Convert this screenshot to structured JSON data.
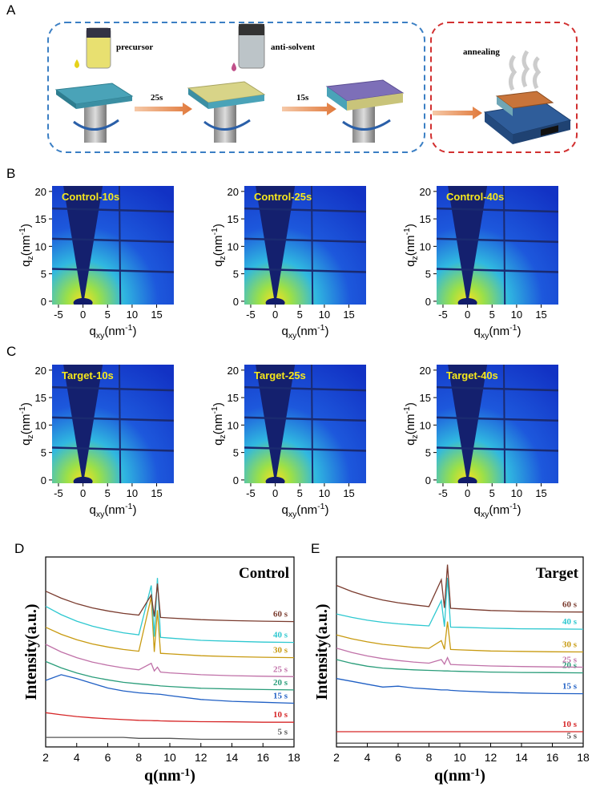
{
  "figure": {
    "panel_labels": [
      "A",
      "B",
      "C",
      "D",
      "E"
    ]
  },
  "schematic": {
    "steps": [
      "precursor",
      "anti-solvent",
      "annealing"
    ],
    "times": [
      "25s",
      "15s"
    ]
  },
  "chart_data": [
    {
      "type": "giwaxs",
      "title": "Control-10s",
      "xlim": [
        -6.3,
        18.5
      ],
      "ylim": [
        -0.6,
        21
      ],
      "xticks": [
        -5,
        0,
        5,
        10,
        15
      ],
      "yticks": [
        0,
        5,
        10,
        15,
        20
      ],
      "xlabel": [
        "q",
        "xy",
        "(nm",
        "-1",
        ")"
      ],
      "ylabel": [
        "q",
        "z",
        "(nm",
        "-1",
        ")"
      ]
    },
    {
      "type": "giwaxs",
      "title": "Control-25s",
      "xlim": [
        -6.3,
        18.5
      ],
      "ylim": [
        -0.6,
        21
      ],
      "xticks": [
        -5,
        0,
        5,
        10,
        15
      ],
      "yticks": [
        0,
        5,
        10,
        15,
        20
      ],
      "xlabel": [
        "q",
        "xy",
        "(nm",
        "-1",
        ")"
      ],
      "ylabel": [
        "q",
        "z",
        "(nm",
        "-1",
        ")"
      ]
    },
    {
      "type": "giwaxs",
      "title": "Control-40s",
      "xlim": [
        -6.3,
        18.5
      ],
      "ylim": [
        -0.6,
        21
      ],
      "xticks": [
        -5,
        0,
        5,
        10,
        15
      ],
      "yticks": [
        0,
        5,
        10,
        15,
        20
      ],
      "xlabel": [
        "q",
        "xy",
        "(nm",
        "-1",
        ")"
      ],
      "ylabel": [
        "q",
        "z",
        "(nm",
        "-1",
        ")"
      ]
    },
    {
      "type": "giwaxs",
      "title": "Target-10s",
      "xlim": [
        -6.3,
        18.5
      ],
      "ylim": [
        -0.6,
        21
      ],
      "xticks": [
        -5,
        0,
        5,
        10,
        15
      ],
      "yticks": [
        0,
        5,
        10,
        15,
        20
      ],
      "xlabel": [
        "q",
        "xy",
        "(nm",
        "-1",
        ")"
      ],
      "ylabel": [
        "q",
        "z",
        "(nm",
        "-1",
        ")"
      ]
    },
    {
      "type": "giwaxs",
      "title": "Target-25s",
      "xlim": [
        -6.3,
        18.5
      ],
      "ylim": [
        -0.6,
        21
      ],
      "xticks": [
        -5,
        0,
        5,
        10,
        15
      ],
      "yticks": [
        0,
        5,
        10,
        15,
        20
      ],
      "xlabel": [
        "q",
        "xy",
        "(nm",
        "-1",
        ")"
      ],
      "ylabel": [
        "q",
        "z",
        "(nm",
        "-1",
        ")"
      ]
    },
    {
      "type": "giwaxs",
      "title": "Target-40s",
      "xlim": [
        -6.3,
        18.5
      ],
      "ylim": [
        -0.6,
        21
      ],
      "xticks": [
        -5,
        0,
        5,
        10,
        15
      ],
      "yticks": [
        0,
        5,
        10,
        15,
        20
      ],
      "xlabel": [
        "q",
        "xy",
        "(nm",
        "-1",
        ")"
      ],
      "ylabel": [
        "q",
        "z",
        "(nm",
        "-1",
        ")"
      ]
    },
    {
      "type": "line",
      "title": "Control",
      "xlabel": [
        "q(nm",
        "-1",
        ")"
      ],
      "ylabel": "Intensity(a.u.)",
      "xlim": [
        2,
        18
      ],
      "ylim": [
        0,
        100
      ],
      "xticks": [
        2,
        4,
        6,
        8,
        10,
        12,
        14,
        16,
        18
      ],
      "x": [
        2,
        3,
        4,
        5,
        6,
        7,
        8,
        8.8,
        9,
        9.2,
        9.4,
        10,
        12,
        14,
        16,
        18
      ],
      "series": [
        {
          "name": "5 s",
          "color": "#555555",
          "values": [
            5,
            5,
            5,
            5,
            5,
            5,
            4.5,
            4.5,
            4.5,
            4.5,
            4.5,
            4.5,
            4,
            4,
            4,
            4
          ]
        },
        {
          "name": "10 s",
          "color": "#d62728",
          "values": [
            18,
            16.9,
            16,
            15.3,
            14.8,
            14.4,
            14,
            13.9,
            13.8,
            13.8,
            13.7,
            13.6,
            13.3,
            13.2,
            13,
            13
          ]
        },
        {
          "name": "15 s",
          "color": "#1f5fc4",
          "values": [
            35,
            38,
            36,
            33.5,
            31,
            29.5,
            28.5,
            28,
            27.9,
            27.8,
            27.7,
            27,
            25,
            24,
            23.5,
            23
          ]
        },
        {
          "name": "20 s",
          "color": "#2a9d7a",
          "values": [
            45,
            41.6,
            38.9,
            36.8,
            35.3,
            34,
            33.2,
            32.6,
            32.4,
            32.3,
            32.1,
            31.8,
            30.9,
            30.5,
            30.2,
            30
          ]
        },
        {
          "name": "25 s",
          "color": "#c071a8",
          "values": [
            54,
            50,
            47,
            44.7,
            43,
            41.6,
            40.6,
            44,
            40,
            42,
            39.4,
            39,
            38,
            37.5,
            37.2,
            37
          ]
        },
        {
          "name": "30 s",
          "color": "#c89a10",
          "values": [
            63,
            59.3,
            56.4,
            54.2,
            52.6,
            51.3,
            50.4,
            79,
            50,
            72,
            49.3,
            49,
            48,
            47.5,
            47.2,
            47
          ]
        },
        {
          "name": "40 s",
          "color": "#2ec8d0",
          "values": [
            74,
            69.6,
            66.2,
            63.6,
            61.7,
            60.1,
            59,
            85,
            58,
            89,
            57.7,
            57.3,
            56.1,
            55.6,
            55.2,
            55
          ]
        },
        {
          "name": "60 s",
          "color": "#7a3b2e",
          "values": [
            82,
            78.3,
            75.4,
            73.2,
            71.6,
            70.3,
            69.4,
            80,
            68.6,
            86,
            68.2,
            67.9,
            67,
            66.5,
            66.2,
            66
          ]
        }
      ]
    },
    {
      "type": "line",
      "title": "Target",
      "xlabel": [
        "q(nm",
        "-1",
        ")"
      ],
      "ylabel": "Intensity(a.u.)",
      "xlim": [
        2,
        18
      ],
      "ylim": [
        0,
        100
      ],
      "xticks": [
        2,
        4,
        6,
        8,
        10,
        12,
        14,
        16,
        18
      ],
      "x": [
        2,
        3,
        4,
        5,
        6,
        7,
        8,
        8.8,
        9,
        9.2,
        9.4,
        10,
        12,
        14,
        16,
        18
      ],
      "series": [
        {
          "name": "5 s",
          "color": "#555555",
          "values": [
            2,
            2,
            2,
            2,
            2,
            2,
            2,
            2,
            2,
            2,
            2,
            2,
            2,
            2,
            2,
            2
          ]
        },
        {
          "name": "10 s",
          "color": "#d62728",
          "values": [
            8,
            8,
            8,
            8,
            8,
            8,
            8,
            8,
            8,
            8,
            8,
            8,
            8,
            8,
            8,
            8
          ]
        },
        {
          "name": "15 s",
          "color": "#1f5fc4",
          "values": [
            36,
            34.5,
            33,
            31.5,
            32,
            31,
            30.5,
            30,
            30,
            30,
            29.8,
            29.5,
            28.8,
            28.4,
            28.1,
            28
          ]
        },
        {
          "name": "20 s",
          "color": "#2a9d7a",
          "values": [
            46,
            44,
            42.5,
            41.5,
            41,
            40.6,
            40.3,
            40.1,
            40,
            40,
            39.9,
            39.8,
            39.4,
            39.2,
            39.1,
            39
          ]
        },
        {
          "name": "25 s",
          "color": "#c071a8",
          "values": [
            52,
            49.7,
            47.9,
            46.5,
            45.5,
            44.7,
            44.1,
            46,
            43.6,
            47,
            43.4,
            43.2,
            42.6,
            42.3,
            42.1,
            42
          ]
        },
        {
          "name": "30 s",
          "color": "#c89a10",
          "values": [
            59,
            56.9,
            55.3,
            54,
            53.2,
            52.4,
            51.9,
            56,
            51.4,
            66,
            51.3,
            51.1,
            50.5,
            50.3,
            50.1,
            50
          ]
        },
        {
          "name": "40 s",
          "color": "#2ec8d0",
          "values": [
            70,
            68.2,
            66.7,
            65.6,
            64.8,
            64.2,
            63.7,
            77,
            63.3,
            89,
            63.1,
            63,
            62.5,
            62.2,
            62.1,
            62
          ]
        },
        {
          "name": "60 s",
          "color": "#7a3b2e",
          "values": [
            85,
            81.8,
            79.3,
            77.3,
            75.9,
            74.8,
            73.9,
            88,
            73.2,
            96,
            73,
            72.7,
            71.8,
            71.4,
            71.1,
            71
          ]
        }
      ]
    }
  ]
}
